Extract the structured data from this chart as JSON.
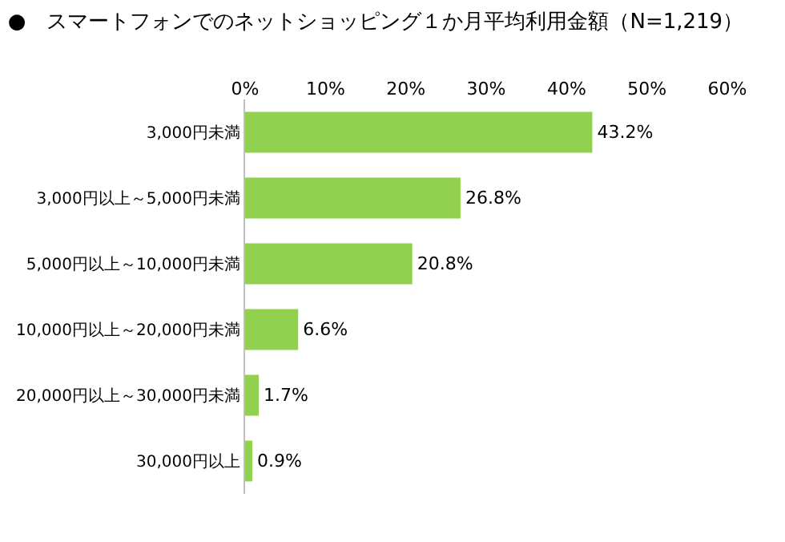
{
  "chart_data": {
    "type": "bar",
    "orientation": "horizontal",
    "title": "●　スマートフォンでのネットショッピング１か月平均利用金額（N=1,219）",
    "categories": [
      "3,000円未満",
      "3,000円以上～5,000円未満",
      "5,000円以上～10,000円未満",
      "10,000円以上～20,000円未満",
      "20,000円以上～30,000円未満",
      "30,000円以上"
    ],
    "values": [
      43.2,
      26.8,
      20.8,
      6.6,
      1.7,
      0.9
    ],
    "value_labels": [
      "43.2%",
      "26.8%",
      "20.8%",
      "6.6%",
      "1.7%",
      "0.9%"
    ],
    "color": "#92d050",
    "xlim": [
      0,
      60
    ],
    "xticks": [
      {
        "value": 0,
        "label": "0%"
      },
      {
        "value": 10,
        "label": "10%"
      },
      {
        "value": 20,
        "label": "20%"
      },
      {
        "value": 30,
        "label": "30%"
      },
      {
        "value": 40,
        "label": "40%"
      },
      {
        "value": 50,
        "label": "50%"
      },
      {
        "value": 60,
        "label": "60%"
      }
    ],
    "legend": false
  }
}
